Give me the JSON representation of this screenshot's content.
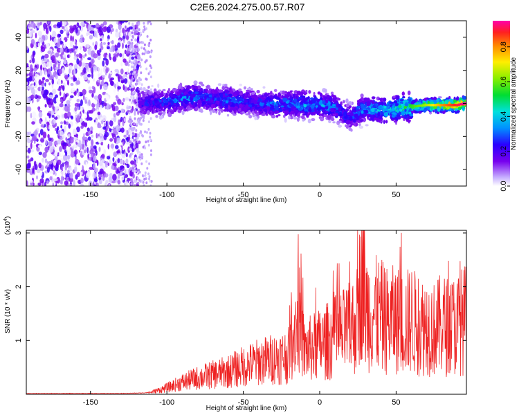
{
  "figure_title": "C2E6.2024.275.00.57.R07",
  "chart_data": [
    {
      "type": "heatmap",
      "xlabel": "Height of straight line (km)",
      "ylabel": "Frequency (Hz)",
      "xlim": [
        -192,
        96
      ],
      "ylim": [
        -50,
        50
      ],
      "x_ticks": [
        "-150",
        "-100",
        "-50",
        "0",
        "50"
      ],
      "y_ticks": [
        "-40",
        "-20",
        "0",
        "20",
        "40"
      ],
      "colorbar": {
        "label": "Normalized spectral amplitude",
        "range": [
          0.0,
          0.95
        ],
        "ticks": [
          "0.0",
          "0.2",
          "0.4",
          "0.6",
          "0.8"
        ]
      },
      "ridge": {
        "x": [
          -118,
          -100,
          -90,
          -80,
          -70,
          -60,
          -50,
          -40,
          -30,
          -20,
          -10,
          0,
          10,
          15,
          20,
          25,
          30,
          40,
          50,
          60,
          70,
          80,
          90,
          95
        ],
        "center_frequency": [
          0,
          1,
          3,
          4,
          3,
          2,
          1,
          0,
          -1,
          0,
          -1,
          -1,
          -2,
          -6,
          -8,
          -5,
          -3,
          -4,
          -3,
          -2,
          -1,
          -1,
          -1,
          0
        ],
        "amplitude": [
          0.25,
          0.3,
          0.35,
          0.35,
          0.3,
          0.35,
          0.3,
          0.3,
          0.35,
          0.35,
          0.4,
          0.4,
          0.35,
          0.3,
          0.3,
          0.35,
          0.4,
          0.45,
          0.5,
          0.55,
          0.65,
          0.8,
          0.9,
          0.95
        ]
      }
    },
    {
      "type": "line",
      "xlabel": "Height of straight line (km)",
      "ylabel": "SNR (10 * v/v)",
      "y_scale_label": "(x10^4)",
      "xlim": [
        -192,
        96
      ],
      "ylim": [
        0,
        3.05
      ],
      "x_ticks": [
        "-150",
        "-100",
        "-50",
        "0",
        "50"
      ],
      "y_ticks": [
        "1",
        "2",
        "3"
      ],
      "color": "#ee2222",
      "series": [
        {
          "x": [
            -192,
            -160,
            -130,
            -115,
            -110,
            -100,
            -90,
            -80,
            -70,
            -60,
            -50,
            -40,
            -30,
            -20,
            -14,
            -10,
            0,
            10,
            20,
            25,
            28,
            30,
            35,
            40,
            45,
            50,
            55,
            60,
            65,
            70,
            75,
            80,
            85,
            90,
            95
          ],
          "values": [
            0.01,
            0.01,
            0.01,
            0.02,
            0.04,
            0.12,
            0.22,
            0.3,
            0.36,
            0.42,
            0.52,
            0.6,
            0.66,
            0.72,
            1.5,
            0.8,
            0.92,
            1.05,
            1.2,
            1.4,
            2.6,
            1.6,
            1.5,
            1.45,
            1.35,
            1.4,
            1.3,
            1.4,
            1.25,
            1.3,
            1.2,
            1.3,
            1.25,
            1.3,
            1.4
          ]
        }
      ]
    }
  ]
}
